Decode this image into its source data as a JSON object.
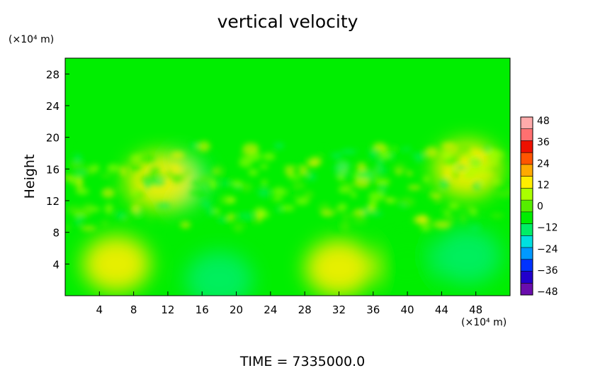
{
  "chart_data": {
    "type": "heatmap",
    "title": "vertical velocity",
    "ylabel": "Height",
    "yunit": "(×10⁴ m)",
    "xunit": "(×10⁴ m)",
    "xlim": [
      0,
      52
    ],
    "ylim": [
      0,
      30
    ],
    "xticks": [
      4,
      8,
      12,
      16,
      20,
      24,
      28,
      32,
      36,
      40,
      44,
      48
    ],
    "yticks": [
      4,
      8,
      12,
      16,
      20,
      24,
      28
    ],
    "colorbar": {
      "levels": [
        48,
        36,
        24,
        12,
        0,
        -12,
        -24,
        -36,
        -48
      ],
      "range": [
        -48,
        48
      ],
      "colors": [
        "#6a0dad",
        "#2200cc",
        "#0033ff",
        "#0099ff",
        "#00e0e0",
        "#00ee66",
        "#00ee00",
        "#55ee00",
        "#aaff00",
        "#ffee00",
        "#ffaa00",
        "#ff5500",
        "#ee1100",
        "#ff7070",
        "#ffaaaa"
      ]
    },
    "features": [
      {
        "x": 6,
        "y": 4,
        "value": 12
      },
      {
        "x": 32,
        "y": 3.5,
        "value": 14
      },
      {
        "x": 18,
        "y": 2,
        "value": -12
      },
      {
        "x": 40,
        "y": 4,
        "value": -8
      },
      {
        "x": 47,
        "y": 5,
        "value": -10
      },
      {
        "x": 13,
        "y": 14.5,
        "value": -12
      },
      {
        "x": 11,
        "y": 14.5,
        "value": 12
      },
      {
        "x": 47,
        "y": 16,
        "value": 14
      }
    ],
    "footer": "TIME  =  7335000.0"
  }
}
